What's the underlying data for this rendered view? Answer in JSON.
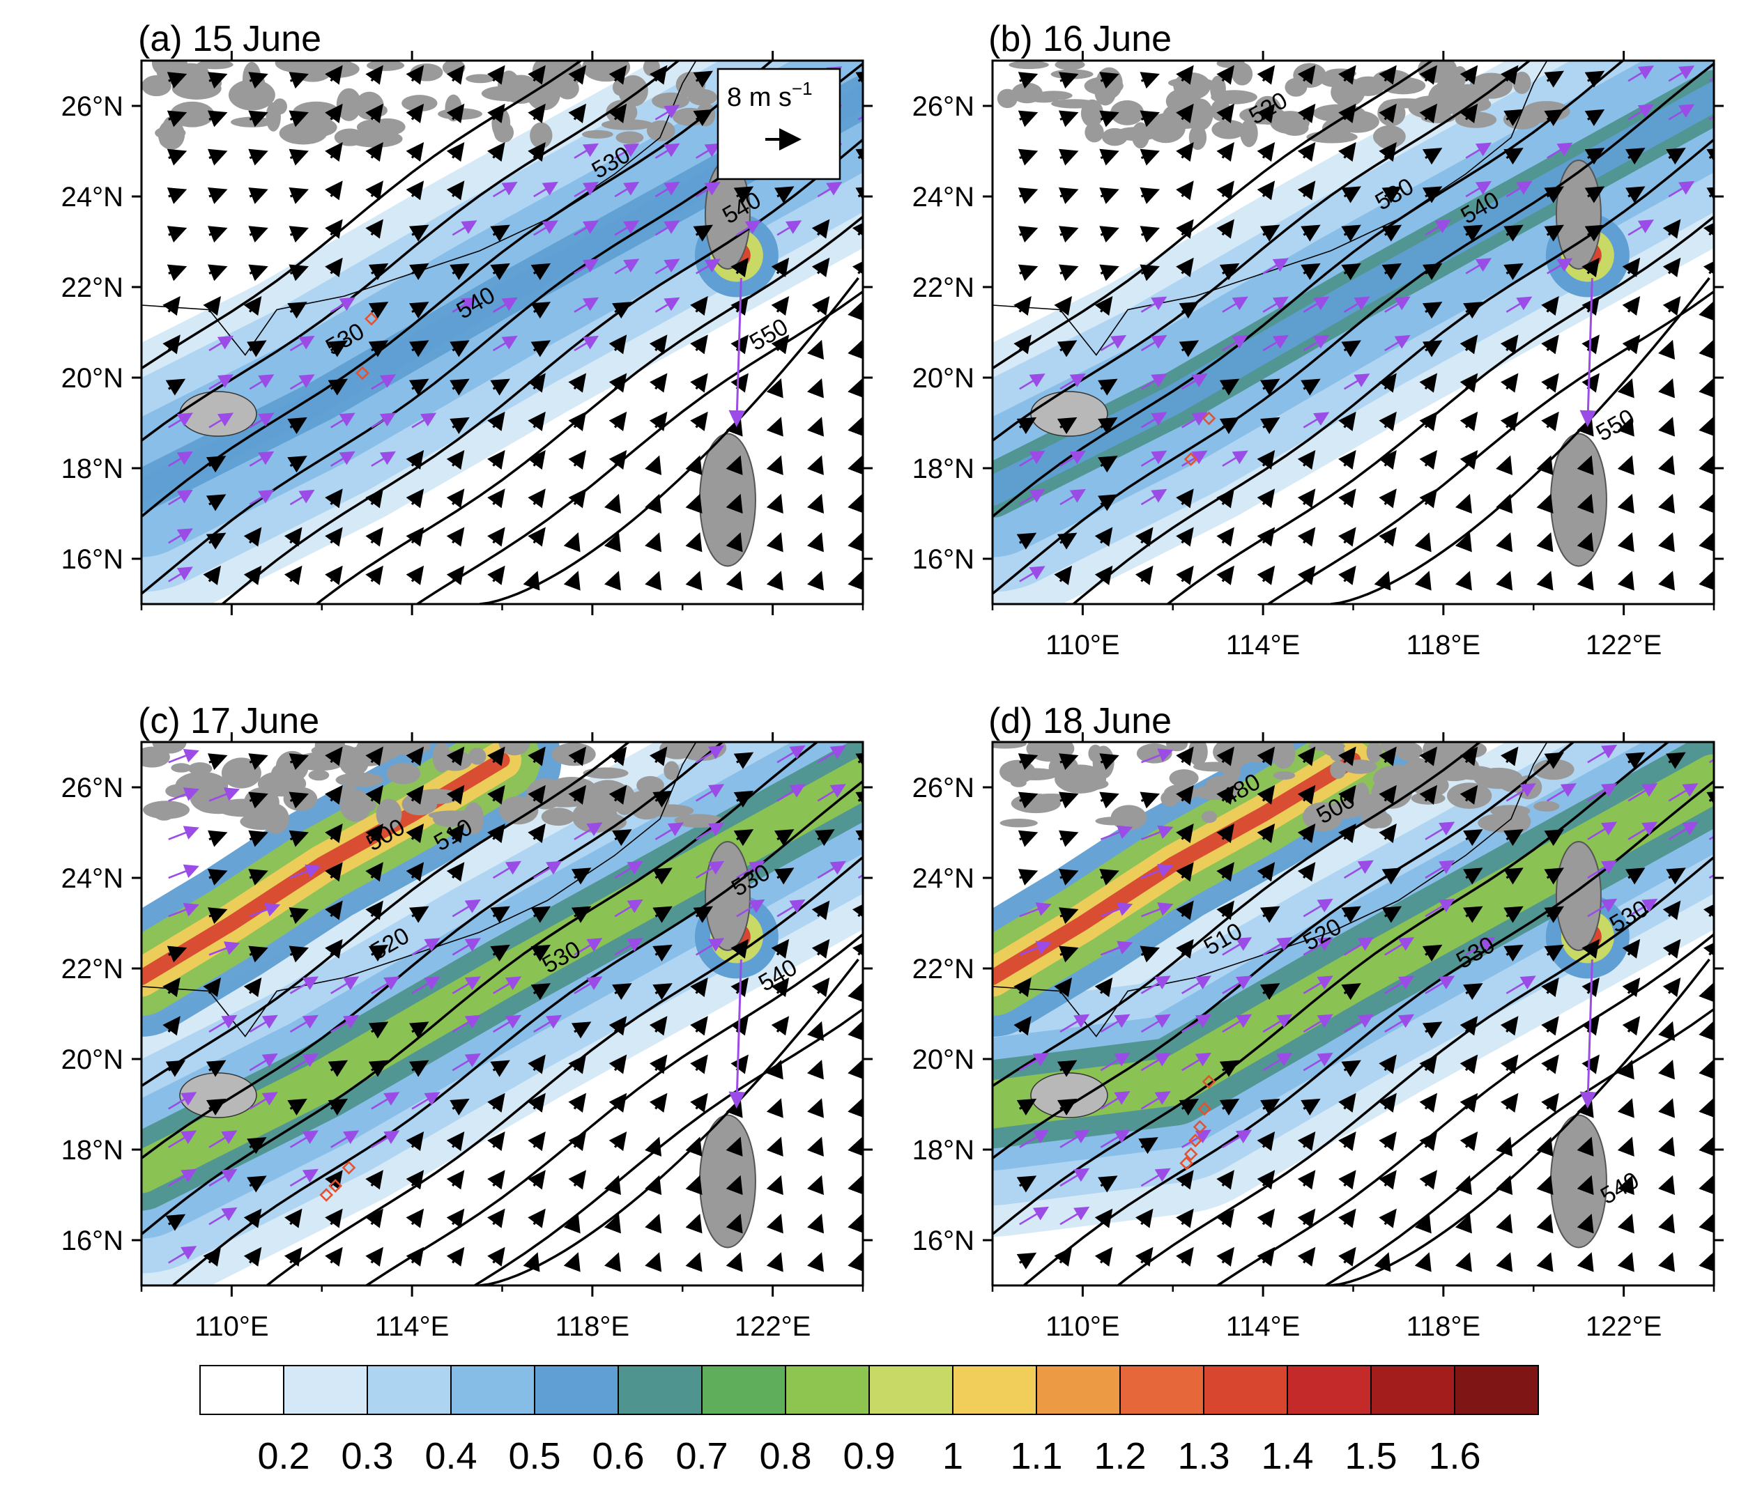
{
  "figure": {
    "panels": [
      {
        "title": "(a) 15 June",
        "show_x_labels": false,
        "show_y_labels": true,
        "contour_labels": [
          {
            "text": "530",
            "lon": 112.6,
            "lat": 20.7
          },
          {
            "text": "540",
            "lon": 115.5,
            "lat": 21.5
          },
          {
            "text": "550",
            "lon": 122.0,
            "lat": 20.8
          },
          {
            "text": "540",
            "lon": 121.4,
            "lat": 23.6
          },
          {
            "text": "530",
            "lon": 118.5,
            "lat": 24.6
          }
        ],
        "markers": [
          {
            "lon": 113.1,
            "lat": 21.3
          },
          {
            "lon": 112.9,
            "lat": 20.1
          }
        ],
        "reference_vector": {
          "label": "8 m s",
          "exponent": "−1"
        },
        "jet_strength": 0.55
      },
      {
        "title": "(b) 16 June",
        "show_x_labels": true,
        "show_y_labels": true,
        "contour_labels": [
          {
            "text": "520",
            "lon": 114.2,
            "lat": 25.8
          },
          {
            "text": "530",
            "lon": 117.0,
            "lat": 23.9
          },
          {
            "text": "540",
            "lon": 118.9,
            "lat": 23.6
          },
          {
            "text": "550",
            "lon": 121.9,
            "lat": 18.8
          }
        ],
        "markers": [
          {
            "lon": 112.8,
            "lat": 19.1
          },
          {
            "lon": 112.4,
            "lat": 18.2
          }
        ],
        "reference_vector": null,
        "jet_strength": 0.7
      },
      {
        "title": "(c) 17 June",
        "show_x_labels": true,
        "show_y_labels": true,
        "contour_labels": [
          {
            "text": "500",
            "lon": 113.5,
            "lat": 24.8
          },
          {
            "text": "510",
            "lon": 115.0,
            "lat": 24.8
          },
          {
            "text": "520",
            "lon": 113.6,
            "lat": 22.4
          },
          {
            "text": "530",
            "lon": 117.4,
            "lat": 22.1
          },
          {
            "text": "540",
            "lon": 122.2,
            "lat": 21.7
          },
          {
            "text": "530",
            "lon": 121.6,
            "lat": 23.8
          }
        ],
        "markers": [
          {
            "lon": 112.6,
            "lat": 17.6
          },
          {
            "lon": 112.3,
            "lat": 17.2
          },
          {
            "lon": 112.1,
            "lat": 17.0
          }
        ],
        "reference_vector": null,
        "jet_strength": 1.0
      },
      {
        "title": "(d) 18 June",
        "show_x_labels": true,
        "show_y_labels": true,
        "contour_labels": [
          {
            "text": "500",
            "lon": 115.7,
            "lat": 25.4
          },
          {
            "text": "510",
            "lon": 113.2,
            "lat": 22.5
          },
          {
            "text": "520",
            "lon": 115.4,
            "lat": 22.6
          },
          {
            "text": "530",
            "lon": 118.8,
            "lat": 22.2
          },
          {
            "text": "530",
            "lon": 122.2,
            "lat": 23.0
          },
          {
            "text": "540",
            "lon": 122.0,
            "lat": 17.0
          },
          {
            "text": "480",
            "lon": 113.6,
            "lat": 25.8
          }
        ],
        "markers": [
          {
            "lon": 112.8,
            "lat": 19.5
          },
          {
            "lon": 112.7,
            "lat": 18.9
          },
          {
            "lon": 112.6,
            "lat": 18.5
          },
          {
            "lon": 112.5,
            "lat": 18.2
          },
          {
            "lon": 112.4,
            "lat": 17.9
          },
          {
            "lon": 112.3,
            "lat": 17.7
          }
        ],
        "reference_vector": null,
        "jet_strength": 1.15
      }
    ],
    "axes": {
      "lon_range": [
        108,
        124
      ],
      "lat_range": [
        15,
        27
      ],
      "x_ticks": [
        110,
        114,
        118,
        122
      ],
      "x_tick_labels": [
        "110°E",
        "114°E",
        "118°E",
        "122°E"
      ],
      "y_ticks": [
        16,
        18,
        20,
        22,
        24,
        26
      ],
      "y_tick_labels": [
        "16°N",
        "18°N",
        "20°N",
        "22°N",
        "24°N",
        "26°N"
      ]
    },
    "colorbar": {
      "tick_labels": [
        "0.2",
        "0.3",
        "0.4",
        "0.5",
        "0.6",
        "0.7",
        "0.8",
        "0.9",
        "1",
        "1.1",
        "1.2",
        "1.3",
        "1.4",
        "1.5",
        "1.6"
      ],
      "colors": [
        "#ffffff",
        "#d4e8f7",
        "#add4f1",
        "#86bde6",
        "#5f9fd3",
        "#4f948f",
        "#5fae5b",
        "#8ec450",
        "#c9d966",
        "#f1ce5a",
        "#ec9a44",
        "#e6683a",
        "#d84630",
        "#c52a2a",
        "#a31d1d",
        "#7f1515"
      ]
    },
    "colors": {
      "contour": "#000000",
      "vector_black": "#000000",
      "vector_purple": "#9b4be6",
      "terrain": "#9a9a9a",
      "marker": "#e8502d"
    }
  }
}
